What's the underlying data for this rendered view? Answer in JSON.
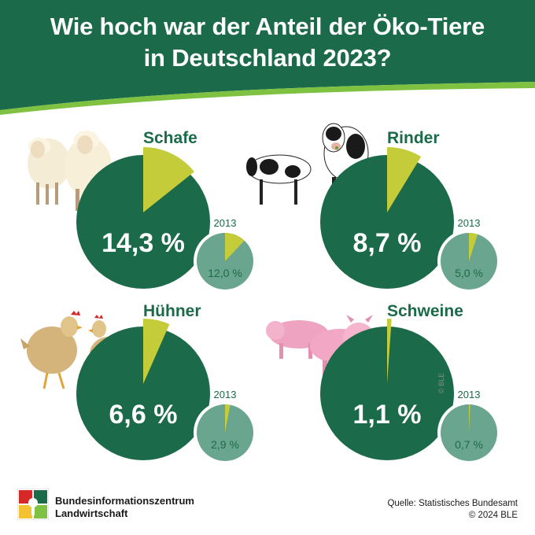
{
  "title": {
    "line1": "Wie hoch war der Anteil der Öko-Tiere",
    "line2": "in Deutschland 2023?"
  },
  "colors": {
    "header_green": "#1b6b4a",
    "big_pie_green": "#1b6b4a",
    "share_yellow_green": "#c4cc3a",
    "small_pie_green": "#6aa590",
    "small_pie_slice": "#c4cc3a",
    "swoosh_green": "#7fc241"
  },
  "chart_data": [
    {
      "type": "pie",
      "name": "Schafe",
      "value_2023": 14.3,
      "label_2023": "14,3 %",
      "compare_year": "2013",
      "value_2013": 12.0,
      "label_2013": "12,0 %"
    },
    {
      "type": "pie",
      "name": "Rinder",
      "value_2023": 8.7,
      "label_2023": "8,7 %",
      "compare_year": "2013",
      "value_2013": 5.0,
      "label_2013": "5,0 %"
    },
    {
      "type": "pie",
      "name": "Hühner",
      "value_2023": 6.6,
      "label_2023": "6,6 %",
      "compare_year": "2013",
      "value_2013": 2.9,
      "label_2013": "2,9 %"
    },
    {
      "type": "pie",
      "name": "Schweine",
      "value_2023": 1.1,
      "label_2023": "1,1 %",
      "compare_year": "2013",
      "value_2013": 0.7,
      "label_2013": "0,7 %"
    }
  ],
  "footer": {
    "org_line1": "Bundesinformationszentrum",
    "org_line2": "Landwirtschaft",
    "source_line": "Quelle: Statistisches Bundesamt",
    "copyright": "© 2024 BLE"
  },
  "image_credit": "© BLE",
  "icons": {
    "logo": "ble-logo-icon",
    "sheep": "sheep-illustration",
    "cows": "cows-illustration",
    "chickens": "chickens-illustration",
    "pigs": "pigs-illustration"
  }
}
